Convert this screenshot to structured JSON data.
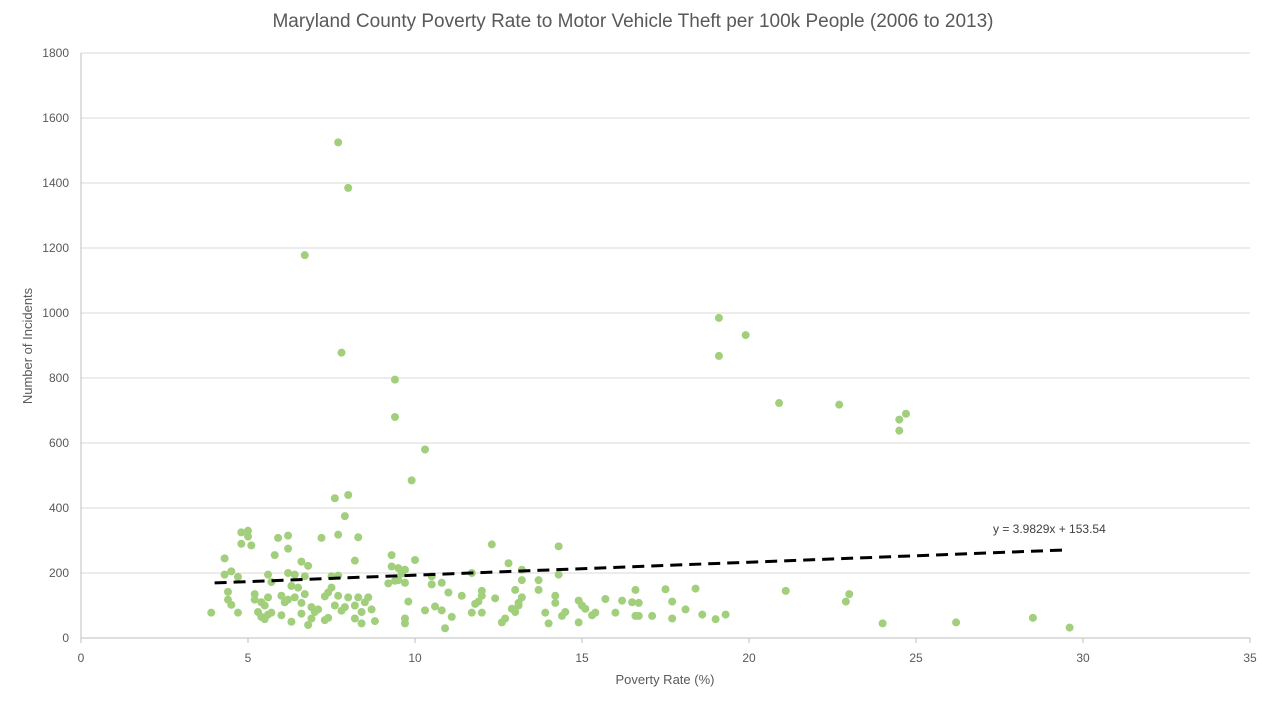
{
  "chart_data": {
    "type": "scatter",
    "title": "Maryland County Poverty Rate to Motor Vehicle Theft per 100k People (2006 to 2013)",
    "xlabel": "Poverty Rate (%)",
    "ylabel": "Number of Incidents",
    "xlim": [
      0,
      35
    ],
    "ylim": [
      0,
      1800
    ],
    "x_ticks": [
      0,
      5,
      10,
      15,
      20,
      25,
      30,
      35
    ],
    "y_ticks": [
      0,
      200,
      400,
      600,
      800,
      1000,
      1200,
      1400,
      1600,
      1800
    ],
    "grid": "horizontal",
    "marker_color": "#a2cf7c",
    "trendline": {
      "equation": "y = 3.9829x + 153.54",
      "slope": 3.9829,
      "intercept": 153.54,
      "x_range": [
        4.0,
        29.5
      ],
      "style": "dashed",
      "color": "#000000"
    },
    "points": [
      [
        7.7,
        1525
      ],
      [
        8.0,
        1385
      ],
      [
        6.7,
        1178
      ],
      [
        7.8,
        878
      ],
      [
        9.4,
        795
      ],
      [
        9.4,
        680
      ],
      [
        10.3,
        580
      ],
      [
        9.9,
        485
      ],
      [
        7.6,
        430
      ],
      [
        8.0,
        440
      ],
      [
        7.9,
        375
      ],
      [
        7.7,
        318
      ],
      [
        8.3,
        310
      ],
      [
        19.1,
        985
      ],
      [
        19.9,
        932
      ],
      [
        19.1,
        868
      ],
      [
        20.9,
        723
      ],
      [
        22.7,
        718
      ],
      [
        24.7,
        690
      ],
      [
        24.5,
        672
      ],
      [
        24.5,
        638
      ],
      [
        4.8,
        325
      ],
      [
        5.0,
        330
      ],
      [
        5.0,
        312
      ],
      [
        4.8,
        290
      ],
      [
        5.1,
        285
      ],
      [
        6.2,
        315
      ],
      [
        5.9,
        308
      ],
      [
        6.2,
        275
      ],
      [
        5.8,
        255
      ],
      [
        7.2,
        308
      ],
      [
        4.3,
        245
      ],
      [
        4.5,
        205
      ],
      [
        4.3,
        195
      ],
      [
        4.7,
        188
      ],
      [
        4.4,
        142
      ],
      [
        4.4,
        118
      ],
      [
        4.5,
        102
      ],
      [
        3.9,
        78
      ],
      [
        4.7,
        78
      ],
      [
        5.2,
        135
      ],
      [
        5.2,
        118
      ],
      [
        5.4,
        110
      ],
      [
        5.6,
        125
      ],
      [
        5.5,
        100
      ],
      [
        5.3,
        80
      ],
      [
        5.6,
        72
      ],
      [
        5.7,
        78
      ],
      [
        5.5,
        58
      ],
      [
        5.4,
        65
      ],
      [
        5.6,
        195
      ],
      [
        5.7,
        172
      ],
      [
        6.0,
        130
      ],
      [
        6.1,
        110
      ],
      [
        6.2,
        118
      ],
      [
        6.3,
        160
      ],
      [
        6.4,
        195
      ],
      [
        6.5,
        155
      ],
      [
        6.6,
        235
      ],
      [
        6.8,
        222
      ],
      [
        6.7,
        190
      ],
      [
        6.2,
        200
      ],
      [
        6.4,
        125
      ],
      [
        6.6,
        108
      ],
      [
        6.7,
        135
      ],
      [
        6.9,
        95
      ],
      [
        7.0,
        80
      ],
      [
        6.9,
        60
      ],
      [
        7.1,
        88
      ],
      [
        6.3,
        50
      ],
      [
        6.6,
        75
      ],
      [
        6.8,
        40
      ],
      [
        7.3,
        55
      ],
      [
        7.3,
        128
      ],
      [
        7.4,
        140
      ],
      [
        7.5,
        190
      ],
      [
        7.5,
        155
      ],
      [
        7.6,
        100
      ],
      [
        7.7,
        192
      ],
      [
        7.7,
        130
      ],
      [
        7.9,
        95
      ],
      [
        8.0,
        125
      ],
      [
        8.2,
        238
      ],
      [
        8.2,
        100
      ],
      [
        8.3,
        125
      ],
      [
        8.2,
        60
      ],
      [
        8.4,
        80
      ],
      [
        8.5,
        110
      ],
      [
        8.6,
        125
      ],
      [
        8.7,
        88
      ],
      [
        8.4,
        45
      ],
      [
        8.8,
        52
      ],
      [
        7.4,
        62
      ],
      [
        7.8,
        84
      ],
      [
        6.0,
        70
      ],
      [
        9.2,
        168
      ],
      [
        9.3,
        255
      ],
      [
        9.3,
        220
      ],
      [
        9.5,
        178
      ],
      [
        9.5,
        215
      ],
      [
        9.6,
        205
      ],
      [
        9.7,
        210
      ],
      [
        9.6,
        198
      ],
      [
        9.4,
        176
      ],
      [
        9.7,
        170
      ],
      [
        10.0,
        240
      ],
      [
        9.8,
        112
      ],
      [
        9.7,
        60
      ],
      [
        9.7,
        45
      ],
      [
        10.3,
        85
      ],
      [
        10.5,
        190
      ],
      [
        10.5,
        165
      ],
      [
        10.6,
        97
      ],
      [
        10.8,
        170
      ],
      [
        10.8,
        85
      ],
      [
        11.0,
        140
      ],
      [
        11.1,
        65
      ],
      [
        10.9,
        30
      ],
      [
        11.4,
        130
      ],
      [
        11.7,
        200
      ],
      [
        11.8,
        105
      ],
      [
        11.7,
        78
      ],
      [
        12.0,
        145
      ],
      [
        12.0,
        130
      ],
      [
        11.9,
        112
      ],
      [
        12.0,
        78
      ],
      [
        12.3,
        288
      ],
      [
        12.4,
        122
      ],
      [
        12.6,
        48
      ],
      [
        12.7,
        60
      ],
      [
        12.8,
        230
      ],
      [
        12.9,
        90
      ],
      [
        13.0,
        148
      ],
      [
        13.0,
        80
      ],
      [
        13.1,
        100
      ],
      [
        13.2,
        210
      ],
      [
        13.2,
        178
      ],
      [
        13.2,
        125
      ],
      [
        13.1,
        108
      ],
      [
        13.7,
        178
      ],
      [
        13.7,
        148
      ],
      [
        13.9,
        78
      ],
      [
        14.0,
        45
      ],
      [
        14.2,
        130
      ],
      [
        14.2,
        108
      ],
      [
        14.3,
        282
      ],
      [
        14.3,
        195
      ],
      [
        14.4,
        68
      ],
      [
        14.5,
        80
      ],
      [
        14.9,
        115
      ],
      [
        14.9,
        48
      ],
      [
        15.0,
        100
      ],
      [
        15.1,
        90
      ],
      [
        15.3,
        70
      ],
      [
        15.4,
        78
      ],
      [
        15.7,
        120
      ],
      [
        16.0,
        78
      ],
      [
        16.2,
        115
      ],
      [
        16.5,
        110
      ],
      [
        16.6,
        148
      ],
      [
        16.6,
        68
      ],
      [
        16.7,
        108
      ],
      [
        16.7,
        68
      ],
      [
        17.1,
        68
      ],
      [
        17.5,
        150
      ],
      [
        17.7,
        112
      ],
      [
        17.7,
        60
      ],
      [
        18.1,
        88
      ],
      [
        18.4,
        152
      ],
      [
        18.6,
        72
      ],
      [
        19.0,
        58
      ],
      [
        19.3,
        72
      ],
      [
        21.1,
        145
      ],
      [
        22.9,
        112
      ],
      [
        23.0,
        135
      ],
      [
        24.0,
        45
      ],
      [
        26.2,
        48
      ],
      [
        28.5,
        62
      ],
      [
        29.6,
        32
      ]
    ]
  }
}
